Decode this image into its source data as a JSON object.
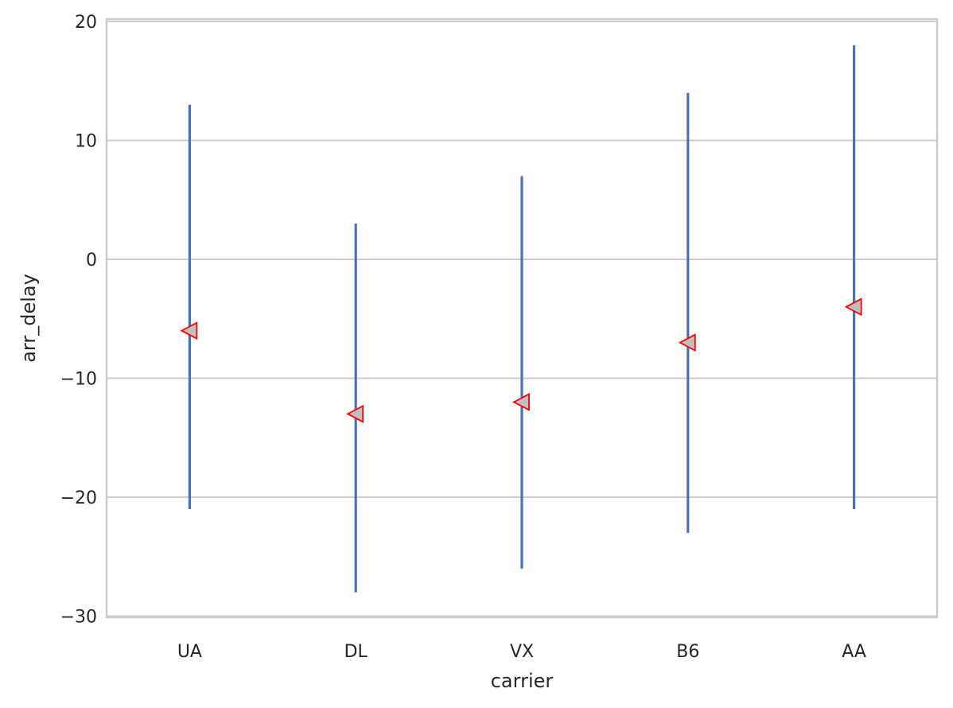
{
  "chart_data": {
    "type": "errorbar",
    "xlabel": "carrier",
    "ylabel": "arr_delay",
    "categories": [
      "UA",
      "DL",
      "VX",
      "B6",
      "AA"
    ],
    "series": [
      {
        "values": [
          -6,
          -13,
          -12,
          -7,
          -4
        ],
        "lower": [
          -21,
          -28,
          -26,
          -23,
          -21
        ],
        "upper": [
          13,
          3,
          7,
          14,
          18
        ]
      }
    ],
    "ylim": [
      -30,
      20
    ],
    "yticks": [
      -30,
      -20,
      -10,
      0,
      10,
      20
    ],
    "ytick_labels": [
      "−30",
      "−20",
      "−10",
      "0",
      "10",
      "20"
    ],
    "grid": "horizontal",
    "marker": "triangle-left",
    "colors": {
      "errorbar": "#4c72b0",
      "marker_fill": "#c0c0c0",
      "marker_edge": "#ff0000",
      "grid": "#cccccc",
      "spine": "#cccccc"
    }
  }
}
